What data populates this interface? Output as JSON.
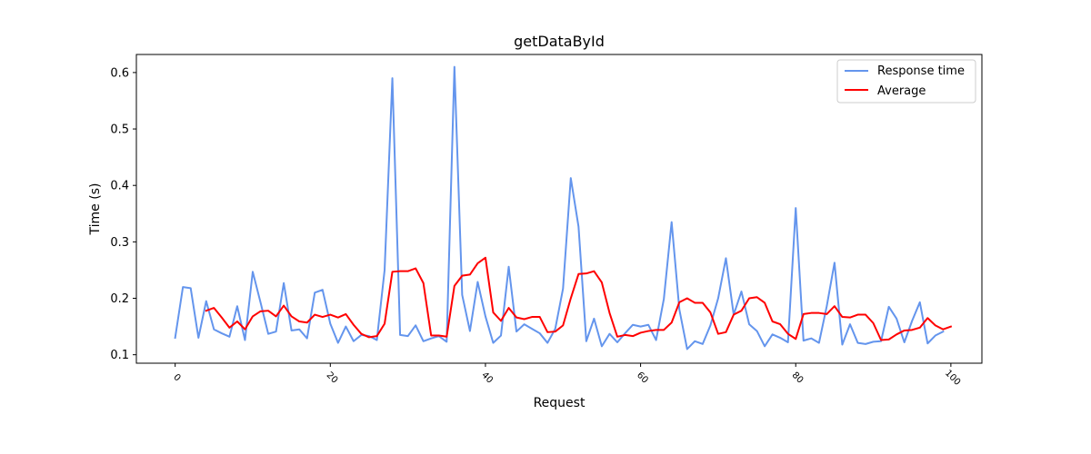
{
  "chart_data": {
    "type": "line",
    "title": "getDataById",
    "xlabel": "Request",
    "ylabel": "Time (s)",
    "xlim": [
      -5,
      104
    ],
    "ylim": [
      0.085,
      0.632
    ],
    "x_ticks": [
      0,
      20,
      40,
      60,
      80,
      100
    ],
    "y_ticks": [
      0.1,
      0.2,
      0.3,
      0.4,
      0.5,
      0.6
    ],
    "grid": false,
    "legend_position": "top-right",
    "series": [
      {
        "name": "Response time",
        "color": "#6495ED",
        "start_x": 0,
        "values": [
          0.13,
          0.22,
          0.218,
          0.13,
          0.195,
          0.145,
          0.138,
          0.132,
          0.186,
          0.126,
          0.247,
          0.193,
          0.137,
          0.141,
          0.227,
          0.143,
          0.145,
          0.129,
          0.21,
          0.215,
          0.155,
          0.121,
          0.15,
          0.124,
          0.135,
          0.133,
          0.126,
          0.25,
          0.59,
          0.135,
          0.133,
          0.152,
          0.124,
          0.129,
          0.133,
          0.123,
          0.61,
          0.206,
          0.142,
          0.229,
          0.168,
          0.121,
          0.134,
          0.256,
          0.141,
          0.154,
          0.146,
          0.138,
          0.121,
          0.146,
          0.217,
          0.413,
          0.327,
          0.124,
          0.164,
          0.115,
          0.137,
          0.122,
          0.138,
          0.153,
          0.15,
          0.153,
          0.126,
          0.199,
          0.335,
          0.18,
          0.11,
          0.124,
          0.119,
          0.152,
          0.2,
          0.271,
          0.171,
          0.212,
          0.154,
          0.142,
          0.115,
          0.136,
          0.13,
          0.122,
          0.36,
          0.125,
          0.129,
          0.121,
          0.186,
          0.263,
          0.118,
          0.154,
          0.121,
          0.119,
          0.123,
          0.124,
          0.185,
          0.164,
          0.122,
          0.16,
          0.193,
          0.12,
          0.134,
          0.141
        ]
      },
      {
        "name": "Average",
        "color": "#FF0000",
        "start_x": 4,
        "values": [
          0.178,
          0.183,
          0.166,
          0.148,
          0.159,
          0.145,
          0.168,
          0.177,
          0.178,
          0.168,
          0.187,
          0.168,
          0.159,
          0.157,
          0.171,
          0.167,
          0.171,
          0.166,
          0.172,
          0.153,
          0.137,
          0.131,
          0.133,
          0.155,
          0.247,
          0.248,
          0.248,
          0.253,
          0.227,
          0.134,
          0.134,
          0.132,
          0.222,
          0.24,
          0.242,
          0.262,
          0.272,
          0.175,
          0.16,
          0.183,
          0.166,
          0.163,
          0.167,
          0.167,
          0.14,
          0.141,
          0.152,
          0.2,
          0.243,
          0.244,
          0.248,
          0.228,
          0.174,
          0.132,
          0.135,
          0.133,
          0.139,
          0.142,
          0.144,
          0.144,
          0.157,
          0.193,
          0.2,
          0.192,
          0.192,
          0.175,
          0.137,
          0.14,
          0.171,
          0.178,
          0.2,
          0.202,
          0.192,
          0.159,
          0.154,
          0.137,
          0.128,
          0.172,
          0.174,
          0.174,
          0.172,
          0.186,
          0.167,
          0.166,
          0.171,
          0.171,
          0.156,
          0.126,
          0.127,
          0.136,
          0.143,
          0.144,
          0.148,
          0.165,
          0.152,
          0.145,
          0.15
        ]
      }
    ]
  }
}
